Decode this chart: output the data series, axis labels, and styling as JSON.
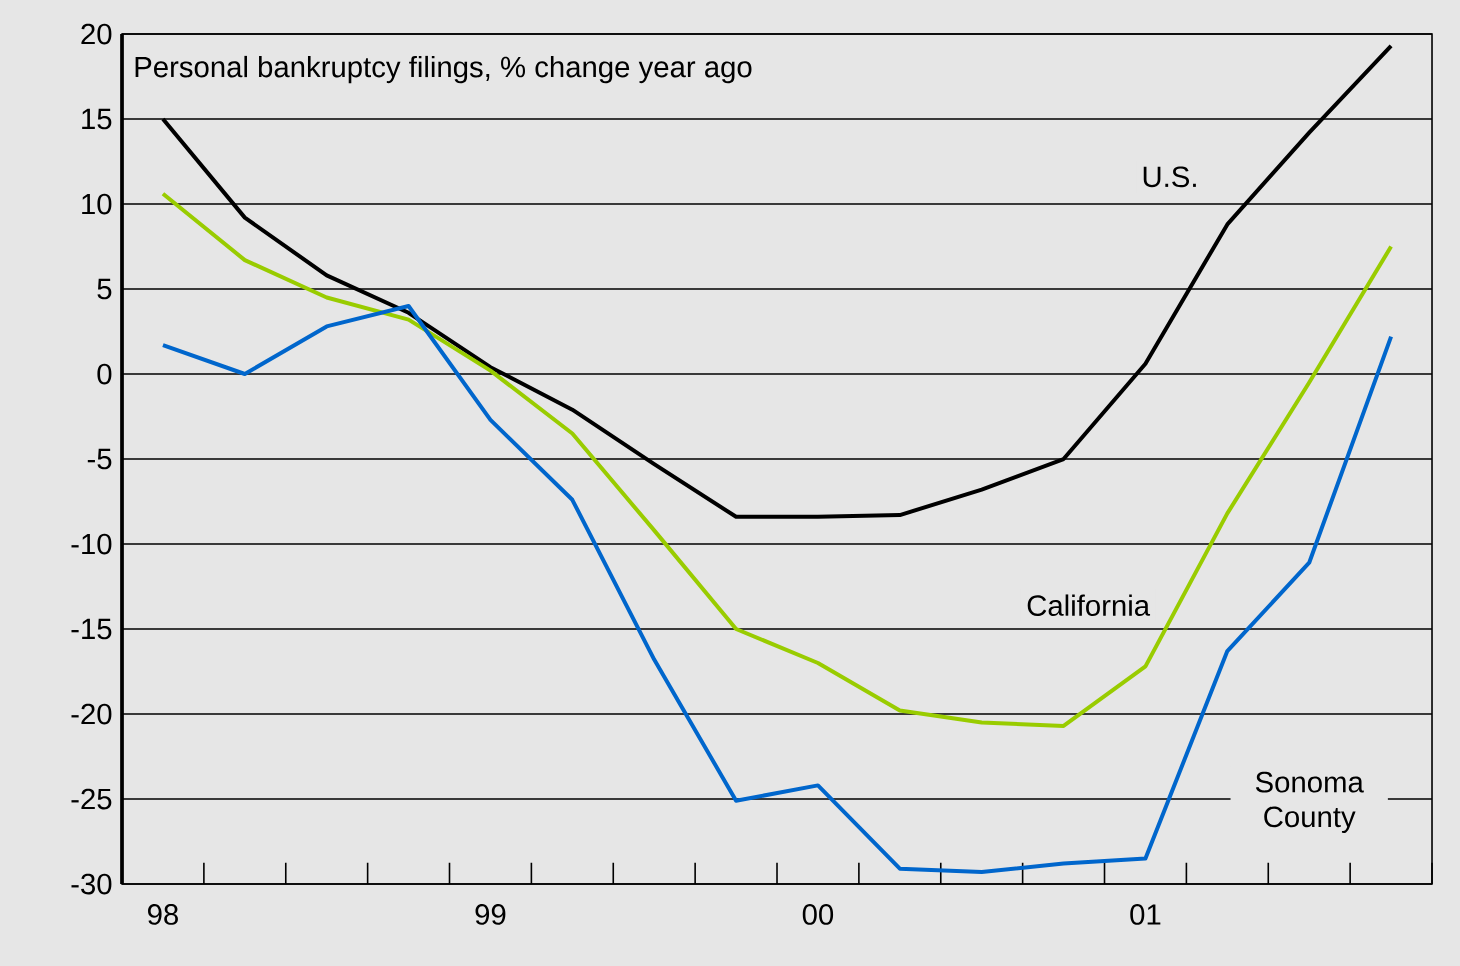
{
  "chart_data": {
    "type": "line",
    "title": "Personal bankruptcy filings, % change year ago",
    "categories": [
      "98",
      null,
      null,
      null,
      "99",
      null,
      null,
      null,
      "00",
      null,
      null,
      null,
      "01",
      null,
      null,
      null
    ],
    "series": [
      {
        "name": "U.S.",
        "color": "#000000",
        "values": [
          15,
          9.2,
          5.8,
          3.6,
          0.4,
          -2.1,
          -5.3,
          -8.4,
          -8.4,
          -8.3,
          -6.8,
          -5,
          0.6,
          8.8,
          14.2,
          19.3
        ]
      },
      {
        "name": "California",
        "color": "#99cc00",
        "values": [
          10.6,
          6.7,
          4.5,
          3.2,
          0.2,
          -3.5,
          -9.2,
          -15,
          -17,
          -19.8,
          -20.5,
          -20.7,
          -17.2,
          -8.2,
          -0.5,
          7.5
        ]
      },
      {
        "name": "Sonoma County",
        "color": "#0066cc",
        "values": [
          1.7,
          0,
          2.8,
          4,
          -2.7,
          -7.4,
          -16.8,
          -25.1,
          -24.2,
          -29.1,
          -29.3,
          -28.8,
          -28.5,
          -16.3,
          -11.1,
          2.2
        ]
      }
    ],
    "ylim": [
      -30,
      20
    ],
    "yticks": [
      -30,
      -25,
      -20,
      -15,
      -10,
      -5,
      0,
      5,
      10,
      15,
      20
    ],
    "grid": "y"
  }
}
